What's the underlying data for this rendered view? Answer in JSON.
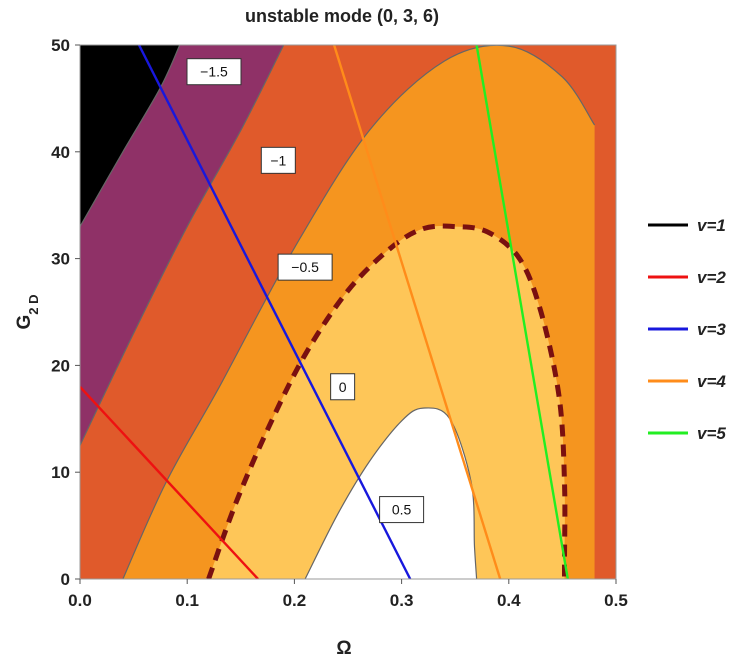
{
  "chart_data": {
    "type": "contour",
    "title": "unstable mode  (0, 3, 6)",
    "xlabel": "Ω",
    "ylabel": "G",
    "ylabel_subscript": "2 D",
    "xlim": [
      0,
      0.5
    ],
    "ylim": [
      0,
      50
    ],
    "xticks": [
      "0.0",
      "0.1",
      "0.2",
      "0.3",
      "0.4",
      "0.5"
    ],
    "yticks": [
      "0",
      "10",
      "20",
      "30",
      "40",
      "50"
    ],
    "contour_levels": [
      {
        "label": "−1.5",
        "value": -1.5,
        "color": "#000000"
      },
      {
        "label": "−1",
        "value": -1,
        "color": "#8f3167"
      },
      {
        "label": "−0.5",
        "value": -0.5,
        "color": "#e05a2b"
      },
      {
        "label": "0",
        "value": 0,
        "color": "#f5951f"
      },
      {
        "label": "0.5",
        "value": 0.5,
        "color": "#fec658"
      }
    ],
    "top_region_color": "#ffffff",
    "label_positions": [
      {
        "label": "−1.5",
        "x": 0.125,
        "y": 47.5
      },
      {
        "label": "−1",
        "x": 0.185,
        "y": 39.2
      },
      {
        "label": "−0.5",
        "x": 0.21,
        "y": 29.2
      },
      {
        "label": "0",
        "x": 0.245,
        "y": 18.0
      },
      {
        "label": "0.5",
        "x": 0.3,
        "y": 6.5
      }
    ],
    "boundaries": [
      {
        "level": "−1.5",
        "points": [
          [
            0,
            33
          ],
          [
            0.04,
            40
          ],
          [
            0.075,
            46
          ],
          [
            0.093,
            50
          ]
        ]
      },
      {
        "level": "−1",
        "points": [
          [
            0,
            12.5
          ],
          [
            0.05,
            23
          ],
          [
            0.1,
            33
          ],
          [
            0.15,
            42
          ],
          [
            0.19,
            50
          ]
        ]
      },
      {
        "level": "−0.5",
        "points": [
          [
            0.04,
            0
          ],
          [
            0.08,
            9
          ],
          [
            0.13,
            18
          ],
          [
            0.2,
            31
          ],
          [
            0.27,
            42
          ],
          [
            0.34,
            48.5
          ],
          [
            0.4,
            49.9
          ],
          [
            0.45,
            47
          ],
          [
            0.48,
            42.5
          ]
        ]
      },
      {
        "level": "0",
        "dashed": true,
        "points": [
          [
            0.12,
            0
          ],
          [
            0.145,
            7
          ],
          [
            0.175,
            14
          ],
          [
            0.21,
            21
          ],
          [
            0.25,
            27
          ],
          [
            0.29,
            31
          ],
          [
            0.32,
            32.8
          ],
          [
            0.35,
            33
          ],
          [
            0.38,
            32.5
          ],
          [
            0.41,
            30
          ],
          [
            0.43,
            25
          ],
          [
            0.447,
            17
          ],
          [
            0.452,
            9
          ],
          [
            0.452,
            2
          ],
          [
            0.452,
            0
          ]
        ]
      },
      {
        "level": "0.5",
        "points": [
          [
            0.21,
            0
          ],
          [
            0.24,
            6
          ],
          [
            0.27,
            11
          ],
          [
            0.3,
            14.8
          ],
          [
            0.32,
            16
          ],
          [
            0.345,
            15
          ],
          [
            0.365,
            9
          ],
          [
            0.368,
            3
          ],
          [
            0.37,
            0
          ]
        ]
      }
    ],
    "series": [
      {
        "name": "v=1",
        "color": "#000000",
        "points": []
      },
      {
        "name": "v=2",
        "color": "#ee1111",
        "points": [
          [
            0,
            18
          ],
          [
            0.166,
            0
          ]
        ]
      },
      {
        "name": "v=3",
        "color": "#1818dd",
        "points": [
          [
            0.055,
            50
          ],
          [
            0.308,
            0
          ]
        ]
      },
      {
        "name": "v=4",
        "color": "#ff8c1a",
        "points": [
          [
            0.237,
            50
          ],
          [
            0.392,
            0
          ]
        ]
      },
      {
        "name": "v=5",
        "color": "#22ee22",
        "points": [
          [
            0.37,
            50
          ],
          [
            0.455,
            0
          ]
        ]
      }
    ],
    "legend_position": "right"
  }
}
